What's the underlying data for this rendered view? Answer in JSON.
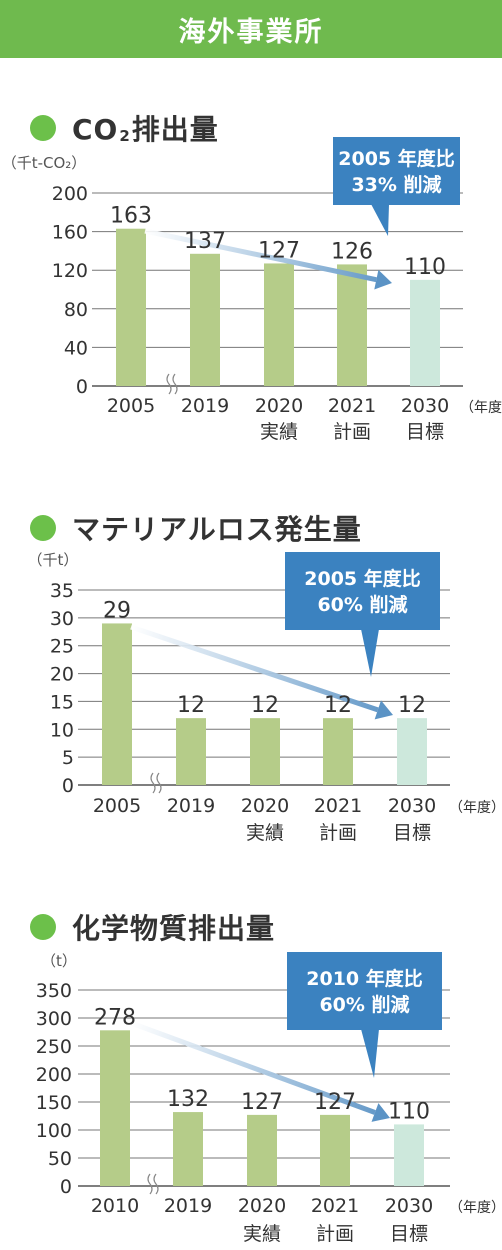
{
  "header": {
    "title": "海外事業所"
  },
  "charts": [
    {
      "title_pre": "CO",
      "title_sub": "2",
      "title_post": "排出量",
      "unit": "（千t-CO₂）",
      "callout": [
        "2005 年度比",
        "33% 削減"
      ],
      "colors": {
        "bar": "#b5cc89",
        "target": "#cde8dc",
        "arrow": "#5b93c5",
        "callout": "#3b82c0"
      }
    },
    {
      "title": "マテリアルロス発生量",
      "unit": "（千t）",
      "callout": [
        "2005 年度比",
        "60% 削減"
      ],
      "colors": {
        "bar": "#b5cc89",
        "target": "#cde8dc",
        "arrow": "#5b93c5",
        "callout": "#3b82c0"
      }
    },
    {
      "title": "化学物質排出量",
      "unit": "（t）",
      "callout": [
        "2010 年度比",
        "60% 削減"
      ],
      "colors": {
        "bar": "#b5cc89",
        "target": "#cde8dc",
        "arrow": "#5b93c5",
        "callout": "#3b82c0"
      }
    }
  ],
  "chart_data": [
    {
      "type": "bar",
      "categories": [
        "2005",
        "2019",
        "2020\n実績",
        "2021\n計画",
        "2030\n目標"
      ],
      "values": [
        163,
        137,
        127,
        126,
        110
      ],
      "ylim": [
        0,
        200
      ],
      "yticks": [
        "0",
        "40",
        "80",
        "120",
        "160",
        "200"
      ],
      "unit_suffix": "（年度）",
      "grid": true
    },
    {
      "type": "bar",
      "categories": [
        "2005",
        "2019",
        "2020\n実績",
        "2021\n計画",
        "2030\n目標"
      ],
      "values": [
        29,
        12,
        12,
        12,
        12
      ],
      "ylim": [
        0,
        35
      ],
      "yticks": [
        "0",
        "5",
        "10",
        "15",
        "20",
        "25",
        "30",
        "35"
      ],
      "unit_suffix": "（年度）",
      "grid": true
    },
    {
      "type": "bar",
      "categories": [
        "2010",
        "2019",
        "2020\n実績",
        "2021\n計画",
        "2030\n目標"
      ],
      "values": [
        278,
        132,
        127,
        127,
        110
      ],
      "ylim": [
        0,
        350
      ],
      "yticks": [
        "0",
        "50",
        "100",
        "150",
        "200",
        "250",
        "300",
        "350"
      ],
      "unit_suffix": "（年度）",
      "grid": true
    }
  ]
}
